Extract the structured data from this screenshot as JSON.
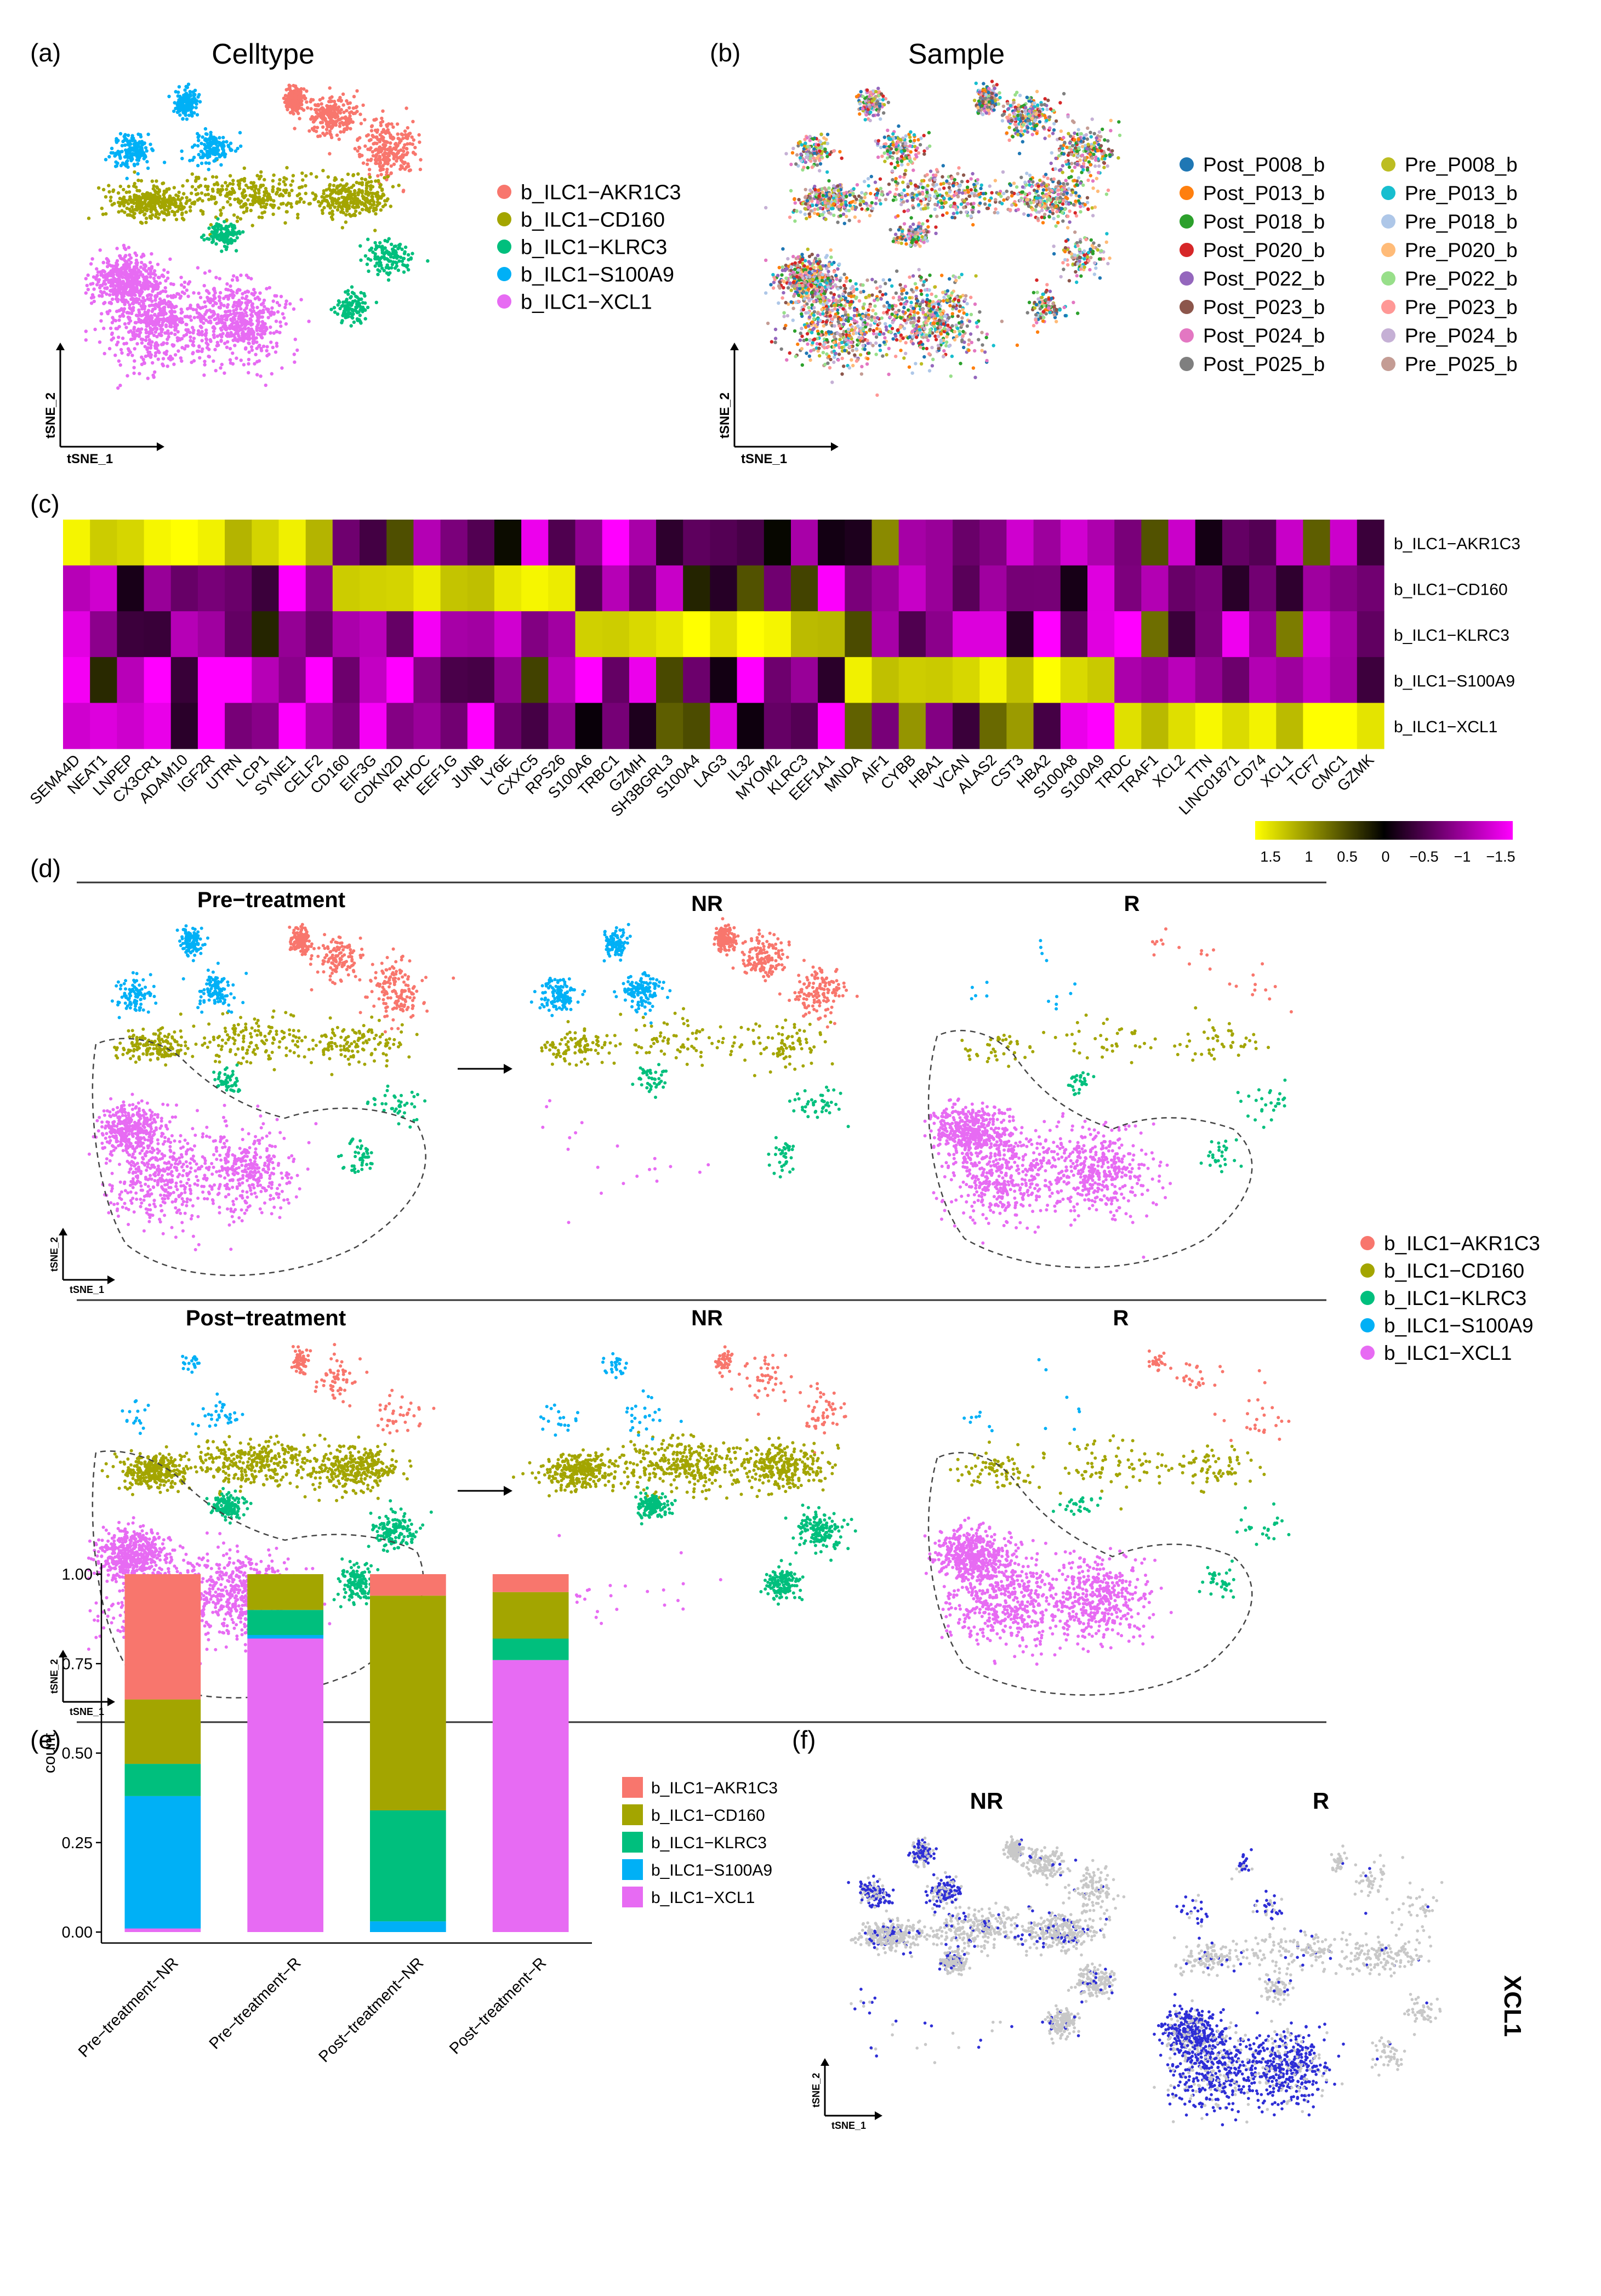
{
  "colors": {
    "AKR1C3": "#F8766D",
    "CD160": "#A3A500",
    "KLRC3": "#00BF7D",
    "S100A9": "#00B0F6",
    "XCL1": "#E76BF3",
    "gray": "#C8C8C8",
    "blue": "#2E2ED6",
    "heat_high": "#FFFF00",
    "heat_mid": "#000000",
    "heat_low": "#FF00FF"
  },
  "panels": {
    "a": {
      "label": "(a)",
      "title": "Celltype"
    },
    "b": {
      "label": "(b)",
      "title": "Sample"
    },
    "c": {
      "label": "(c)"
    },
    "d": {
      "label": "(d)",
      "pre": "Pre−treatment",
      "post": "Post−treatment",
      "nr": "NR",
      "r": "R"
    },
    "e": {
      "label": "(e)"
    },
    "f": {
      "label": "(f)",
      "nr": "NR",
      "r": "R",
      "gene": "XCL1"
    }
  },
  "axes": {
    "x": "tSNE_1",
    "y": "tSNE_2"
  },
  "celltypes": [
    "b_ILC1−AKR1C3",
    "b_ILC1−CD160",
    "b_ILC1−KLRC3",
    "b_ILC1−S100A9",
    "b_ILC1−XCL1"
  ],
  "samples": [
    {
      "name": "Post_P008_b",
      "color": "#1F77B4"
    },
    {
      "name": "Post_P013_b",
      "color": "#FF7F0E"
    },
    {
      "name": "Post_P018_b",
      "color": "#2CA02C"
    },
    {
      "name": "Post_P020_b",
      "color": "#D62728"
    },
    {
      "name": "Post_P022_b",
      "color": "#9467BD"
    },
    {
      "name": "Post_P023_b",
      "color": "#8C564B"
    },
    {
      "name": "Post_P024_b",
      "color": "#E377C2"
    },
    {
      "name": "Post_P025_b",
      "color": "#7F7F7F"
    },
    {
      "name": "Pre_P008_b",
      "color": "#BCBD22"
    },
    {
      "name": "Pre_P013_b",
      "color": "#17BECF"
    },
    {
      "name": "Pre_P018_b",
      "color": "#AEC7E8"
    },
    {
      "name": "Pre_P020_b",
      "color": "#FFBB78"
    },
    {
      "name": "Pre_P022_b",
      "color": "#98DF8A"
    },
    {
      "name": "Pre_P023_b",
      "color": "#FF9896"
    },
    {
      "name": "Pre_P024_b",
      "color": "#C5B0D5"
    },
    {
      "name": "Pre_P025_b",
      "color": "#C49C94"
    }
  ],
  "heatmap": {
    "genes": [
      "SEMA4D",
      "NEAT1",
      "LNPEP",
      "CX3CR1",
      "ADAM10",
      "IGF2R",
      "UTRN",
      "LCP1",
      "SYNE1",
      "CELF2",
      "CD160",
      "EIF3G",
      "CDKN2D",
      "RHOC",
      "EEF1G",
      "JUNB",
      "LY6E",
      "CXXC5",
      "RPS26",
      "S100A6",
      "TRBC1",
      "GZMH",
      "SH3BGRL3",
      "S100A4",
      "LAG3",
      "IL32",
      "MYOM2",
      "KLRC3",
      "EEF1A1",
      "MNDA",
      "AIF1",
      "CYBB",
      "HBA1",
      "VCAN",
      "ALAS2",
      "CST3",
      "HBA2",
      "S100A8",
      "S100A9",
      "TRDC",
      "TRAF1",
      "XCL2",
      "TTN",
      "LINC01871",
      "CD74",
      "XCL1",
      "TCF7",
      "CMC1",
      "GZMK"
    ],
    "rows": [
      "b_ILC1−AKR1C3",
      "b_ILC1−CD160",
      "b_ILC1−KLRC3",
      "b_ILC1−S100A9",
      "b_ILC1−XCL1"
    ],
    "scale_ticks": [
      "1.5",
      "1",
      "0.5",
      "0",
      "−0.5",
      "−1",
      "−1.5"
    ]
  },
  "chart_data": {
    "type": "bar",
    "stacked": true,
    "title": "",
    "xlabel": "",
    "ylabel": "count",
    "ylim": [
      0,
      1
    ],
    "yticks": [
      "0.00",
      "0.25",
      "0.50",
      "0.75",
      "1.00"
    ],
    "categories": [
      "Pre−treatment−NR",
      "Pre−treatment−R",
      "Post−treatment−NR",
      "Post−treatment−R"
    ],
    "series": [
      {
        "name": "b_ILC1−XCL1",
        "values": [
          0.01,
          0.82,
          0.0,
          0.76
        ]
      },
      {
        "name": "b_ILC1−S100A9",
        "values": [
          0.37,
          0.01,
          0.03,
          0.0
        ]
      },
      {
        "name": "b_ILC1−KLRC3",
        "values": [
          0.09,
          0.07,
          0.31,
          0.06
        ]
      },
      {
        "name": "b_ILC1−CD160",
        "values": [
          0.18,
          0.1,
          0.6,
          0.13
        ]
      },
      {
        "name": "b_ILC1−AKR1C3",
        "values": [
          0.35,
          0.0,
          0.06,
          0.05
        ]
      }
    ],
    "legend": "right"
  }
}
